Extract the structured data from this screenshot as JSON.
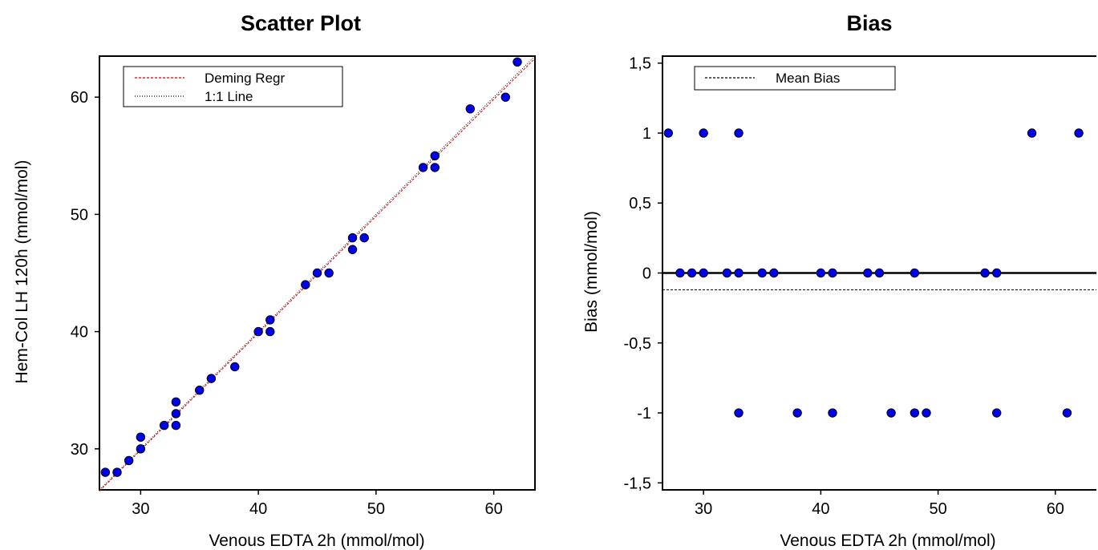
{
  "chart_data": [
    {
      "type": "scatter",
      "title": "Scatter Plot",
      "xlabel": "Venous EDTA 2h (mmol/mol)",
      "ylabel": "Hem-Col LH 120h (mmol/mol)",
      "xlim": [
        26.5,
        63.5
      ],
      "ylim": [
        26.5,
        63.5
      ],
      "xticks": [
        30,
        40,
        50,
        60
      ],
      "yticks": [
        30,
        40,
        50,
        60
      ],
      "grid": false,
      "legend_position": "top-left",
      "point_color": "#0000ee",
      "lines": [
        {
          "name": "Deming Regr",
          "style": "dashed",
          "color": "#dd0000",
          "x": [
            26.5,
            63.5
          ],
          "y": [
            26.4,
            63.3
          ]
        },
        {
          "name": "1:1 Line",
          "style": "dotted",
          "color": "#000000",
          "x": [
            26.5,
            63.5
          ],
          "y": [
            26.5,
            63.5
          ]
        }
      ],
      "points": [
        {
          "x": 27,
          "y": 28
        },
        {
          "x": 28,
          "y": 28
        },
        {
          "x": 29,
          "y": 29
        },
        {
          "x": 30,
          "y": 31
        },
        {
          "x": 30,
          "y": 30
        },
        {
          "x": 32,
          "y": 32
        },
        {
          "x": 33,
          "y": 34
        },
        {
          "x": 33,
          "y": 33
        },
        {
          "x": 33,
          "y": 32
        },
        {
          "x": 35,
          "y": 35
        },
        {
          "x": 36,
          "y": 36
        },
        {
          "x": 38,
          "y": 37
        },
        {
          "x": 40,
          "y": 40
        },
        {
          "x": 41,
          "y": 41
        },
        {
          "x": 41,
          "y": 40
        },
        {
          "x": 44,
          "y": 44
        },
        {
          "x": 45,
          "y": 45
        },
        {
          "x": 46,
          "y": 45
        },
        {
          "x": 48,
          "y": 48
        },
        {
          "x": 48,
          "y": 47
        },
        {
          "x": 49,
          "y": 48
        },
        {
          "x": 54,
          "y": 54
        },
        {
          "x": 55,
          "y": 55
        },
        {
          "x": 55,
          "y": 54
        },
        {
          "x": 58,
          "y": 59
        },
        {
          "x": 61,
          "y": 60
        },
        {
          "x": 62,
          "y": 63
        }
      ]
    },
    {
      "type": "scatter",
      "title": "Bias",
      "xlabel": "Venous EDTA 2h (mmol/mol)",
      "ylabel": "Bias (mmol/mol)",
      "xlim": [
        26.5,
        63.5
      ],
      "ylim": [
        -1.55,
        1.55
      ],
      "xticks": [
        30,
        40,
        50,
        60
      ],
      "xtick_labels": [
        "30",
        "40",
        "50",
        "60"
      ],
      "yticks": [
        1.5,
        1,
        0.5,
        0,
        -0.5,
        -1,
        -1.5
      ],
      "ytick_labels": [
        "1,5",
        "1",
        "0,5",
        "0",
        "-0,5",
        "-1",
        "-1,5"
      ],
      "grid": false,
      "legend_position": "top-left",
      "point_color": "#0000ee",
      "zero_line": 0,
      "lines": [
        {
          "name": "Mean Bias",
          "style": "dashed",
          "color": "#000000",
          "y": -0.12
        }
      ],
      "points": [
        {
          "x": 27,
          "y": 1
        },
        {
          "x": 30,
          "y": 1
        },
        {
          "x": 33,
          "y": 1
        },
        {
          "x": 58,
          "y": 1
        },
        {
          "x": 62,
          "y": 1
        },
        {
          "x": 28,
          "y": 0
        },
        {
          "x": 29,
          "y": 0
        },
        {
          "x": 30,
          "y": 0
        },
        {
          "x": 32,
          "y": 0
        },
        {
          "x": 33,
          "y": 0
        },
        {
          "x": 35,
          "y": 0
        },
        {
          "x": 36,
          "y": 0
        },
        {
          "x": 40,
          "y": 0
        },
        {
          "x": 41,
          "y": 0
        },
        {
          "x": 44,
          "y": 0
        },
        {
          "x": 45,
          "y": 0
        },
        {
          "x": 48,
          "y": 0
        },
        {
          "x": 54,
          "y": 0
        },
        {
          "x": 55,
          "y": 0
        },
        {
          "x": 33,
          "y": -1
        },
        {
          "x": 38,
          "y": -1
        },
        {
          "x": 41,
          "y": -1
        },
        {
          "x": 46,
          "y": -1
        },
        {
          "x": 48,
          "y": -1
        },
        {
          "x": 49,
          "y": -1
        },
        {
          "x": 55,
          "y": -1
        },
        {
          "x": 61,
          "y": -1
        }
      ]
    }
  ]
}
